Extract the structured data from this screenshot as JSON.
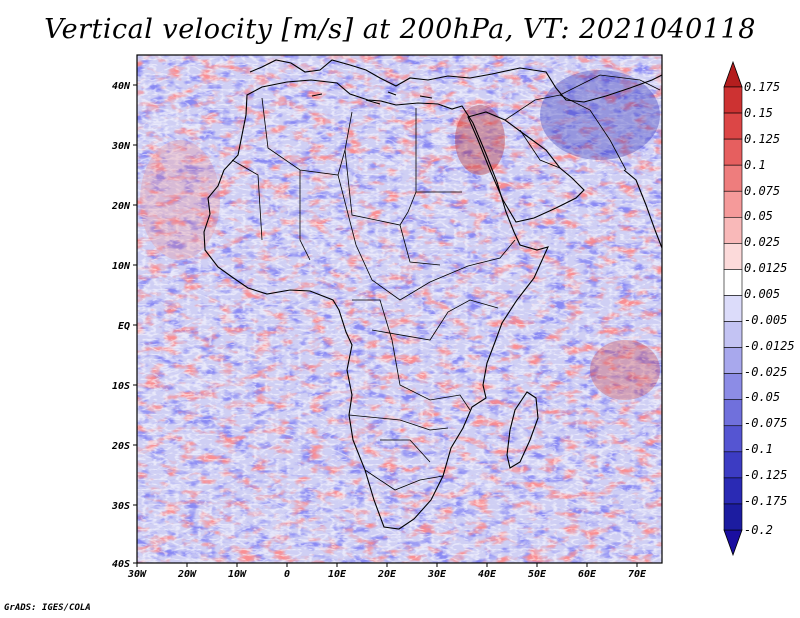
{
  "title": "Vertical velocity [m/s] at 200hPa, VT: 2021040118",
  "credit": "GrADS: IGES/COLA",
  "map": {
    "region": "Africa and surrounding ocean",
    "lon_range": [
      -30,
      75
    ],
    "lat_range": [
      -40,
      45
    ],
    "lon_ticks": [
      "30W",
      "20W",
      "10W",
      "0",
      "10E",
      "20E",
      "30E",
      "40E",
      "50E",
      "60E",
      "70E"
    ],
    "lat_ticks": [
      "40N",
      "30N",
      "20N",
      "10N",
      "EQ",
      "10S",
      "20S",
      "30S",
      "40S"
    ]
  },
  "colorbar": {
    "labels": [
      "0.175",
      "0.15",
      "0.125",
      "0.1",
      "0.075",
      "0.05",
      "0.025",
      "0.0125",
      "0.005",
      "-0.005",
      "-0.0125",
      "-0.025",
      "-0.05",
      "-0.075",
      "-0.1",
      "-0.125",
      "-0.175",
      "-0.2"
    ],
    "colors": [
      "#b41e1e",
      "#cd3232",
      "#dc4646",
      "#e65f5f",
      "#ee7d7d",
      "#f59a9a",
      "#f9b9b9",
      "#fcdada",
      "#ffffff",
      "#dcdcfa",
      "#c3c3f3",
      "#a8a8ed",
      "#8c8ce6",
      "#7070dc",
      "#5555d2",
      "#3c3cc3",
      "#2a2ab4",
      "#1c1ca0",
      "#1a0ea0"
    ]
  }
}
